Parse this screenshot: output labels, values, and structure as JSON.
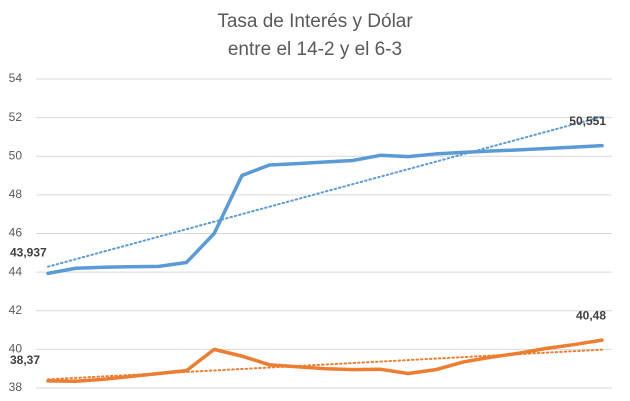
{
  "chart_data": {
    "type": "line",
    "title": [
      "Tasa de Interés y Dólar",
      "entre el 14-2 y el 6-3"
    ],
    "categories": [
      null,
      null,
      null,
      null,
      null,
      null,
      null,
      null,
      null,
      null,
      null,
      null,
      null,
      null,
      null,
      null,
      null,
      null,
      null,
      null,
      null
    ],
    "series": [
      {
        "color": "#5b9bd5",
        "trendline": true,
        "values": [
          43.937,
          44.2,
          44.25,
          44.28,
          44.3,
          44.5,
          46.0,
          49.0,
          49.55,
          49.62,
          49.7,
          49.78,
          50.05,
          49.98,
          50.12,
          50.2,
          50.27,
          50.33,
          50.4,
          50.47,
          50.551
        ],
        "value_labels": [
          "43,937",
          null,
          null,
          null,
          null,
          null,
          null,
          null,
          null,
          null,
          null,
          null,
          null,
          null,
          null,
          null,
          null,
          null,
          null,
          null,
          "50,551"
        ]
      },
      {
        "color": "#ed7d31",
        "trendline": true,
        "values": [
          38.37,
          38.35,
          38.45,
          38.6,
          38.75,
          38.9,
          40.0,
          39.65,
          39.2,
          39.1,
          39.0,
          38.95,
          38.97,
          38.75,
          38.95,
          39.35,
          39.6,
          39.8,
          40.05,
          40.25,
          40.48
        ],
        "value_labels": [
          "38,37",
          null,
          null,
          null,
          null,
          null,
          null,
          null,
          null,
          null,
          null,
          null,
          null,
          null,
          null,
          null,
          null,
          null,
          null,
          null,
          "40,48"
        ]
      }
    ],
    "ylim": [
      38,
      54
    ],
    "yticks": [
      38,
      40,
      42,
      44,
      46,
      48,
      50,
      52,
      54
    ],
    "grid": true
  }
}
